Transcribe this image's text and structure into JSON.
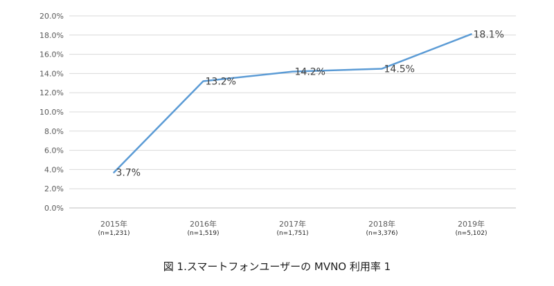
{
  "chart_data": {
    "type": "line",
    "title": "",
    "xlabel": "",
    "ylabel": "",
    "ylim": [
      0,
      20
    ],
    "yticks": [
      "0.0%",
      "2.0%",
      "4.0%",
      "6.0%",
      "8.0%",
      "10.0%",
      "12.0%",
      "14.0%",
      "16.0%",
      "18.0%",
      "20.0%"
    ],
    "grid": true,
    "categories": [
      "2015年",
      "2016年",
      "2017年",
      "2018年",
      "2019年"
    ],
    "sample_sizes": [
      "(n=1,231)",
      "(n=1,519)",
      "(n=1,751)",
      "(n=3,376)",
      "(n=5,102)"
    ],
    "series": [
      {
        "name": "MVNO利用率",
        "values": [
          3.7,
          13.2,
          14.2,
          14.5,
          18.1
        ],
        "labels": [
          "3.7%",
          "13.2%",
          "14.2%",
          "14.5%",
          "18.1%"
        ],
        "color": "#5b9bd5"
      }
    ]
  },
  "caption": "図 1.スマートフォンユーザーの MVNO 利用率 1",
  "colors": {
    "grid": "#d9d9d9",
    "axis": "#bfbfbf",
    "line": "#5b9bd5"
  }
}
